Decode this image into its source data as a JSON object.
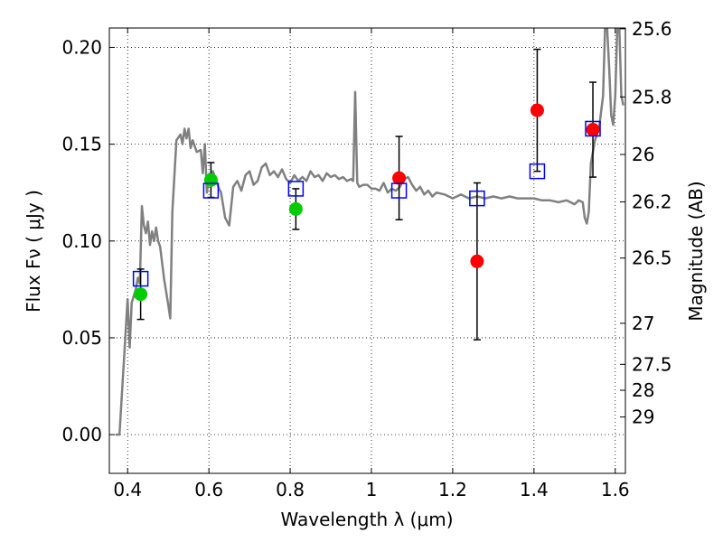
{
  "chart_data": {
    "type": "scatter",
    "xlabel": "Wavelength  λ (μm)",
    "ylabel": "Flux  Fν  ( μJy )",
    "ylabel_right": "Magnitude (AB)",
    "xlim": [
      0.355,
      1.625
    ],
    "ylim": [
      -0.02,
      0.21
    ],
    "grid": true,
    "x_ticks": [
      0.4,
      0.6,
      0.8,
      1.0,
      1.2,
      1.4,
      1.6
    ],
    "x_tick_labels": [
      "0.4",
      "0.6",
      "0.8",
      "1",
      "1.2",
      "1.4",
      "1.6"
    ],
    "y_ticks": [
      0.0,
      0.05,
      0.1,
      0.15,
      0.2
    ],
    "y_tick_labels": [
      "0.00",
      "0.05",
      "0.10",
      "0.15",
      "0.20"
    ],
    "right_ticks": [
      {
        "flux": 0.2096,
        "label": "25.6"
      },
      {
        "flux": 0.1744,
        "label": "25.8"
      },
      {
        "flux": 0.1447,
        "label": "26"
      },
      {
        "flux": 0.1202,
        "label": "26.2"
      },
      {
        "flux": 0.0912,
        "label": "26.5"
      },
      {
        "flux": 0.0575,
        "label": "27"
      },
      {
        "flux": 0.0363,
        "label": "27.5"
      },
      {
        "flux": 0.0229,
        "label": "28"
      },
      {
        "flux": 0.0091,
        "label": "29"
      }
    ],
    "colors": {
      "model": "#808080",
      "green": "#00cc00",
      "red": "#ff0000",
      "square": "#0000ff",
      "errorbar": "#000000",
      "grid": "#000000"
    },
    "model_spectrum": [
      [
        0.37,
        0.0
      ],
      [
        0.38,
        0.0
      ],
      [
        0.39,
        0.035
      ],
      [
        0.4,
        0.07
      ],
      [
        0.405,
        0.045
      ],
      [
        0.41,
        0.068
      ],
      [
        0.42,
        0.075
      ],
      [
        0.425,
        0.081
      ],
      [
        0.43,
        0.078
      ],
      [
        0.435,
        0.118
      ],
      [
        0.44,
        0.108
      ],
      [
        0.445,
        0.104
      ],
      [
        0.45,
        0.11
      ],
      [
        0.455,
        0.098
      ],
      [
        0.46,
        0.105
      ],
      [
        0.465,
        0.1
      ],
      [
        0.47,
        0.107
      ],
      [
        0.475,
        0.1
      ],
      [
        0.48,
        0.097
      ],
      [
        0.49,
        0.08
      ],
      [
        0.5,
        0.067
      ],
      [
        0.505,
        0.06
      ],
      [
        0.51,
        0.115
      ],
      [
        0.52,
        0.152
      ],
      [
        0.53,
        0.155
      ],
      [
        0.535,
        0.15
      ],
      [
        0.54,
        0.158
      ],
      [
        0.545,
        0.153
      ],
      [
        0.55,
        0.158
      ],
      [
        0.555,
        0.148
      ],
      [
        0.56,
        0.152
      ],
      [
        0.57,
        0.146
      ],
      [
        0.58,
        0.147
      ],
      [
        0.585,
        0.135
      ],
      [
        0.59,
        0.15
      ],
      [
        0.595,
        0.125
      ],
      [
        0.6,
        0.133
      ],
      [
        0.61,
        0.136
      ],
      [
        0.62,
        0.13
      ],
      [
        0.625,
        0.127
      ],
      [
        0.63,
        0.125
      ],
      [
        0.64,
        0.112
      ],
      [
        0.65,
        0.108
      ],
      [
        0.66,
        0.128
      ],
      [
        0.67,
        0.131
      ],
      [
        0.68,
        0.126
      ],
      [
        0.69,
        0.134
      ],
      [
        0.7,
        0.136
      ],
      [
        0.71,
        0.129
      ],
      [
        0.72,
        0.131
      ],
      [
        0.73,
        0.138
      ],
      [
        0.74,
        0.14
      ],
      [
        0.75,
        0.134
      ],
      [
        0.76,
        0.136
      ],
      [
        0.77,
        0.133
      ],
      [
        0.78,
        0.137
      ],
      [
        0.79,
        0.132
      ],
      [
        0.8,
        0.13
      ],
      [
        0.81,
        0.134
      ],
      [
        0.82,
        0.131
      ],
      [
        0.83,
        0.133
      ],
      [
        0.84,
        0.131
      ],
      [
        0.85,
        0.136
      ],
      [
        0.86,
        0.133
      ],
      [
        0.87,
        0.134
      ],
      [
        0.88,
        0.131
      ],
      [
        0.89,
        0.135
      ],
      [
        0.9,
        0.133
      ],
      [
        0.91,
        0.134
      ],
      [
        0.92,
        0.132
      ],
      [
        0.93,
        0.133
      ],
      [
        0.94,
        0.131
      ],
      [
        0.95,
        0.132
      ],
      [
        0.955,
        0.131
      ],
      [
        0.96,
        0.177
      ],
      [
        0.965,
        0.13
      ],
      [
        0.97,
        0.128
      ],
      [
        0.98,
        0.129
      ],
      [
        0.99,
        0.129
      ],
      [
        1.0,
        0.127
      ],
      [
        1.01,
        0.127
      ],
      [
        1.02,
        0.126
      ],
      [
        1.03,
        0.13
      ],
      [
        1.04,
        0.125
      ],
      [
        1.05,
        0.127
      ],
      [
        1.06,
        0.126
      ],
      [
        1.07,
        0.128
      ],
      [
        1.08,
        0.132
      ],
      [
        1.09,
        0.133
      ],
      [
        1.1,
        0.129
      ],
      [
        1.11,
        0.126
      ],
      [
        1.12,
        0.128
      ],
      [
        1.13,
        0.124
      ],
      [
        1.14,
        0.126
      ],
      [
        1.15,
        0.123
      ],
      [
        1.16,
        0.125
      ],
      [
        1.18,
        0.124
      ],
      [
        1.2,
        0.122
      ],
      [
        1.22,
        0.124
      ],
      [
        1.24,
        0.122
      ],
      [
        1.26,
        0.123
      ],
      [
        1.28,
        0.122
      ],
      [
        1.3,
        0.123
      ],
      [
        1.32,
        0.122
      ],
      [
        1.34,
        0.123
      ],
      [
        1.36,
        0.122
      ],
      [
        1.38,
        0.122
      ],
      [
        1.4,
        0.122
      ],
      [
        1.42,
        0.121
      ],
      [
        1.44,
        0.121
      ],
      [
        1.46,
        0.12
      ],
      [
        1.48,
        0.121
      ],
      [
        1.5,
        0.119
      ],
      [
        1.51,
        0.121
      ],
      [
        1.52,
        0.12
      ],
      [
        1.525,
        0.112
      ],
      [
        1.53,
        0.109
      ],
      [
        1.535,
        0.115
      ],
      [
        1.54,
        0.14
      ],
      [
        1.55,
        0.152
      ],
      [
        1.56,
        0.158
      ],
      [
        1.57,
        0.175
      ],
      [
        1.575,
        0.21
      ],
      [
        1.58,
        0.21
      ],
      [
        1.585,
        0.19
      ],
      [
        1.59,
        0.165
      ],
      [
        1.595,
        0.16
      ],
      [
        1.6,
        0.175
      ],
      [
        1.605,
        0.21
      ],
      [
        1.61,
        0.21
      ],
      [
        1.615,
        0.175
      ],
      [
        1.62,
        0.17
      ]
    ],
    "green_points": [
      {
        "x": 0.432,
        "y": 0.0725,
        "err": 0.013
      },
      {
        "x": 0.605,
        "y": 0.1315,
        "err": 0.009
      },
      {
        "x": 0.814,
        "y": 0.1165,
        "err": 0.0105
      }
    ],
    "red_points": [
      {
        "x": 1.068,
        "y": 0.1325,
        "err": 0.0215
      },
      {
        "x": 1.26,
        "y": 0.0895,
        "err": 0.0405
      },
      {
        "x": 1.408,
        "y": 0.1675,
        "err": 0.0315
      },
      {
        "x": 1.545,
        "y": 0.1575,
        "err": 0.0245
      }
    ],
    "model_squares": [
      {
        "x": 0.432,
        "y": 0.0805
      },
      {
        "x": 0.605,
        "y": 0.126
      },
      {
        "x": 0.814,
        "y": 0.127
      },
      {
        "x": 1.068,
        "y": 0.126
      },
      {
        "x": 1.26,
        "y": 0.122
      },
      {
        "x": 1.408,
        "y": 0.136
      },
      {
        "x": 1.545,
        "y": 0.158
      }
    ]
  }
}
